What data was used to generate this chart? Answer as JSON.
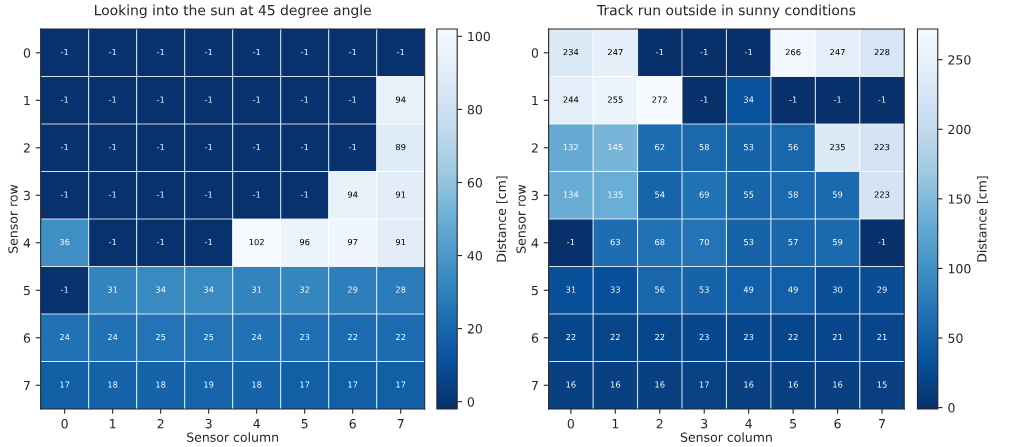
{
  "chart_data": [
    {
      "type": "heatmap",
      "title": "Looking into the sun at 45 degree angle",
      "xlabel": "Sensor column",
      "ylabel": "Sensor row",
      "clabel": "Distance [cm]",
      "categories": [
        "0",
        "1",
        "2",
        "3",
        "4",
        "5",
        "6",
        "7"
      ],
      "y_categories": [
        "0",
        "1",
        "2",
        "3",
        "4",
        "5",
        "6",
        "7"
      ],
      "cells": [
        [
          -1,
          -1,
          -1,
          -1,
          -1,
          -1,
          -1,
          -1
        ],
        [
          -1,
          -1,
          -1,
          -1,
          -1,
          -1,
          -1,
          94
        ],
        [
          -1,
          -1,
          -1,
          -1,
          -1,
          -1,
          -1,
          89
        ],
        [
          -1,
          -1,
          -1,
          -1,
          -1,
          -1,
          94,
          91
        ],
        [
          36,
          -1,
          -1,
          -1,
          102,
          96,
          97,
          91
        ],
        [
          -1,
          31,
          34,
          34,
          31,
          32,
          29,
          28
        ],
        [
          24,
          24,
          25,
          25,
          24,
          23,
          22,
          22
        ],
        [
          17,
          18,
          18,
          19,
          18,
          17,
          17,
          17
        ]
      ],
      "clim": [
        -2,
        102
      ],
      "cticks": [
        0,
        20,
        40,
        60,
        80,
        100
      ],
      "data_labels": true,
      "grid": true
    },
    {
      "type": "heatmap",
      "title": "Track run outside in sunny conditions",
      "xlabel": "Sensor column",
      "ylabel": "Sensor row",
      "clabel": "Distance [cm]",
      "categories": [
        "0",
        "1",
        "2",
        "3",
        "4",
        "5",
        "6",
        "7"
      ],
      "y_categories": [
        "0",
        "1",
        "2",
        "3",
        "4",
        "5",
        "6",
        "7"
      ],
      "cells": [
        [
          234,
          247,
          -1,
          -1,
          -1,
          266,
          247,
          228
        ],
        [
          244,
          255,
          272,
          -1,
          34,
          -1,
          -1,
          -1
        ],
        [
          132,
          145,
          62,
          58,
          53,
          56,
          235,
          223
        ],
        [
          134,
          135,
          54,
          69,
          55,
          58,
          59,
          223
        ],
        [
          -1,
          63,
          68,
          70,
          53,
          57,
          59,
          -1
        ],
        [
          31,
          33,
          56,
          53,
          49,
          49,
          30,
          29
        ],
        [
          22,
          22,
          22,
          23,
          23,
          22,
          21,
          21
        ],
        [
          16,
          16,
          16,
          17,
          16,
          16,
          16,
          15
        ]
      ],
      "clim": [
        -1,
        272
      ],
      "cticks": [
        0,
        50,
        100,
        150,
        200,
        250
      ],
      "data_labels": true,
      "grid": true
    }
  ]
}
